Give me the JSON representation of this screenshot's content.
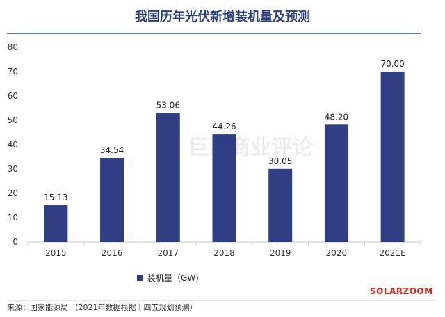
{
  "page": {
    "title": "我国历年光伏新增装机量及预测",
    "source": "来源：国家能源局 （2021年数据根据十四五规划预测）",
    "watermark": "巨潮商业评论",
    "brand": "SOLARZOOM"
  },
  "colors": {
    "bar": "#2e3f83",
    "title": "#2b3c7a",
    "brand": "#e1251b",
    "axis": "#c8c8c8"
  },
  "chart_data": {
    "type": "bar",
    "title": "我国历年光伏新增装机量及预测",
    "categories": [
      "2015",
      "2016",
      "2017",
      "2018",
      "2019",
      "2020",
      "2021E"
    ],
    "series": [
      {
        "name": "装机量（GW)",
        "values": [
          15.13,
          34.54,
          53.06,
          44.26,
          30.05,
          48.2,
          70.0
        ],
        "data_labels": [
          "15.13",
          "34.54",
          "53.06",
          "44.26",
          "30.05",
          "48.20",
          "70.00"
        ]
      }
    ],
    "yticks": [
      "0",
      "10",
      "20",
      "30",
      "40",
      "50",
      "60",
      "70",
      "80"
    ],
    "ylim": [
      0,
      80
    ],
    "grid": false,
    "legend": "bottom-left"
  }
}
